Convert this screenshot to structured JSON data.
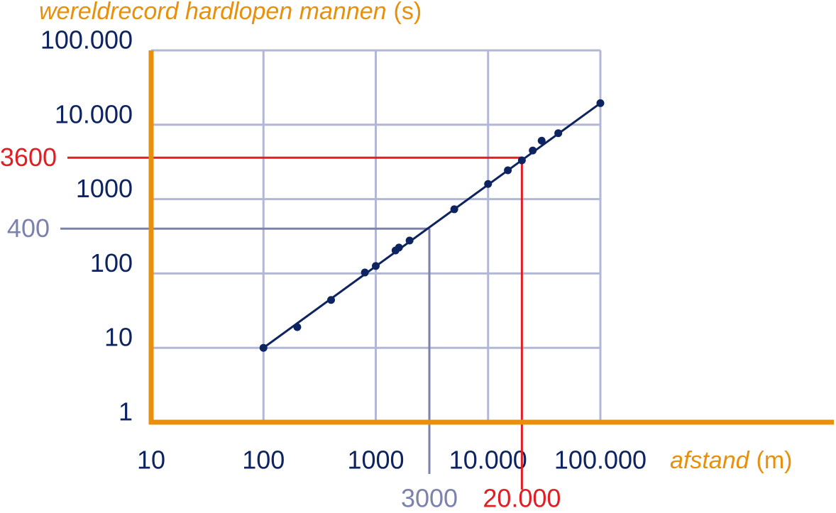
{
  "chart_data": {
    "type": "scatter",
    "y_label": "wereldrecord hardlopen mannen",
    "y_unit": "(s)",
    "x_label": "afstand",
    "x_unit": "(m)",
    "log_x": true,
    "log_y": true,
    "grid": true,
    "axis_color": "#e8900c",
    "grid_color": "#b3b7d6",
    "color": "#0d2461",
    "xlim": [
      10,
      12000000
    ],
    "xticks": [
      10,
      100,
      1000,
      {
        "value": 10000,
        "label": "10.000"
      },
      {
        "value": 100000,
        "label": "100.000"
      }
    ],
    "ylim": [
      1,
      100000
    ],
    "yticks": [
      1,
      10,
      100,
      1000,
      {
        "value": 10000,
        "label": "10.000"
      },
      {
        "value": 100000,
        "label": "100.000"
      }
    ],
    "x": [
      100,
      200,
      400,
      800,
      1000,
      1500,
      1609,
      2000,
      5000,
      10000,
      15000,
      20000,
      25000,
      30000,
      42195,
      100000
    ],
    "values": [
      10,
      19,
      44,
      103,
      126,
      204,
      223,
      277,
      730,
      1600,
      2440,
      3320,
      4500,
      6100,
      7700,
      19500
    ],
    "fit": {
      "x": [
        100,
        100000
      ],
      "values": [
        10,
        19500
      ]
    },
    "guides": [
      {
        "x": 3000,
        "y": 400,
        "color": "#7c82ad"
      },
      {
        "x": {
          "value": 20000,
          "label": "20.000"
        },
        "y": 3600,
        "color": "#e01e24"
      }
    ]
  }
}
